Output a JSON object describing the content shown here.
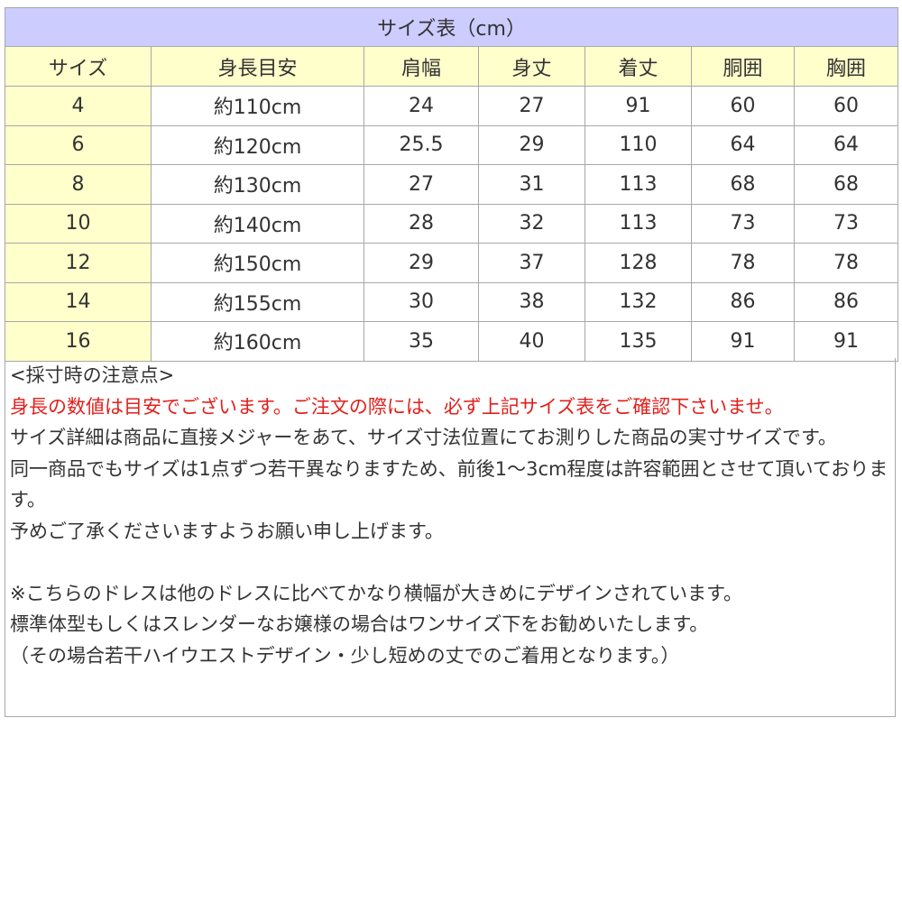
{
  "table": {
    "title": "サイズ表（cm）",
    "headers": [
      "サイズ",
      "身長目安",
      "肩幅",
      "身丈",
      "着丈",
      "胴囲",
      "胸囲"
    ],
    "rows": [
      [
        "4",
        "約110cm",
        "24",
        "27",
        "91",
        "60",
        "60"
      ],
      [
        "6",
        "約120cm",
        "25.5",
        "29",
        "110",
        "64",
        "64"
      ],
      [
        "8",
        "約130cm",
        "27",
        "31",
        "113",
        "68",
        "68"
      ],
      [
        "10",
        "約140cm",
        "28",
        "32",
        "113",
        "73",
        "73"
      ],
      [
        "12",
        "約150cm",
        "29",
        "37",
        "128",
        "78",
        "78"
      ],
      [
        "14",
        "約155cm",
        "30",
        "38",
        "132",
        "86",
        "86"
      ],
      [
        "16",
        "約160cm",
        "35",
        "40",
        "135",
        "91",
        "91"
      ]
    ]
  },
  "notes": {
    "heading": "<採寸時の注意点>",
    "warning": "身長の数値は目安でございます。ご注文の際には、必ず上記サイズ表をご確認下さいませ。",
    "lines": [
      "サイズ詳細は商品に直接メジャーをあて、サイズ寸法位置にてお測りした商品の実寸サイズです。",
      "同一商品でもサイズは1点ずつ若干異なりますため、前後1～3cm程度は許容範囲とさせて頂いております。",
      "予めご了承くださいますようお願い申し上げます。"
    ],
    "extra": [
      "※こちらのドレスは他のドレスに比べてかなり横幅が大きめにデザインされています。",
      "標準体型もしくはスレンダーなお嬢様の場合はワンサイズ下をお勧めいたします。",
      "（その場合若干ハイウエストデザイン・少し短めの丈でのご着用となります。）"
    ]
  },
  "colors": {
    "title_bg": "#ccccff",
    "header_bg": "#ffffcc",
    "warning": "#e0201c"
  }
}
